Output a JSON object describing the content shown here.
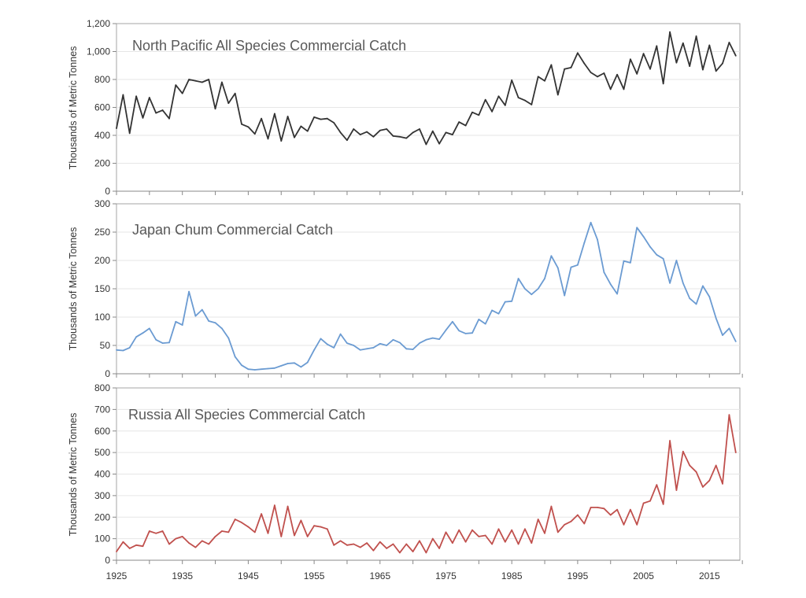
{
  "chart_data": [
    {
      "type": "line",
      "title": "North Pacific All Species Commercial Catch",
      "ylabel": "Thousands of Metric Tonnes",
      "xlabel": "",
      "color": "#333333",
      "ylim": [
        0,
        1200
      ],
      "yticks": [
        0,
        200,
        400,
        600,
        800,
        1000,
        1200
      ],
      "ytick_labels": [
        "0",
        "200",
        "400",
        "600",
        "800",
        "1,000",
        "1,200"
      ],
      "grid": true,
      "x_start": 1925,
      "values": [
        450,
        690,
        415,
        680,
        525,
        670,
        560,
        580,
        520,
        760,
        700,
        800,
        790,
        780,
        800,
        590,
        780,
        630,
        700,
        480,
        460,
        410,
        520,
        375,
        555,
        360,
        535,
        385,
        465,
        430,
        530,
        515,
        520,
        490,
        420,
        365,
        445,
        405,
        425,
        390,
        435,
        445,
        395,
        390,
        380,
        420,
        445,
        335,
        430,
        340,
        420,
        405,
        495,
        470,
        565,
        545,
        655,
        570,
        680,
        615,
        795,
        670,
        650,
        620,
        820,
        790,
        905,
        690,
        875,
        885,
        990,
        915,
        850,
        820,
        845,
        730,
        835,
        730,
        945,
        840,
        985,
        875,
        1040,
        770,
        1140,
        920,
        1060,
        895,
        1110,
        870,
        1045,
        860,
        915,
        1065,
        970
      ]
    },
    {
      "type": "line",
      "title": "Japan Chum Commercial Catch",
      "ylabel": "Thousands of Metric Tonnes",
      "xlabel": "",
      "color": "#6b9bd2",
      "ylim": [
        0,
        300
      ],
      "yticks": [
        0,
        50,
        100,
        150,
        200,
        250,
        300
      ],
      "ytick_labels": [
        "0",
        "50",
        "100",
        "150",
        "200",
        "250",
        "300"
      ],
      "grid": true,
      "x_start": 1925,
      "values": [
        42,
        41,
        46,
        65,
        72,
        80,
        60,
        54,
        55,
        92,
        86,
        145,
        102,
        113,
        93,
        90,
        80,
        63,
        30,
        15,
        8,
        7,
        8,
        9,
        10,
        14,
        18,
        19,
        12,
        20,
        42,
        62,
        52,
        46,
        70,
        54,
        50,
        42,
        44,
        46,
        53,
        50,
        60,
        55,
        44,
        43,
        54,
        60,
        63,
        61,
        77,
        92,
        76,
        71,
        72,
        96,
        88,
        112,
        106,
        127,
        128,
        168,
        150,
        140,
        150,
        168,
        208,
        187,
        138,
        188,
        192,
        231,
        267,
        237,
        179,
        158,
        141,
        199,
        196,
        258,
        242,
        224,
        210,
        203,
        160,
        200,
        160,
        133,
        123,
        155,
        136,
        98,
        68,
        80,
        57
      ]
    },
    {
      "type": "line",
      "title": "Russia All Species Commercial Catch",
      "ylabel": "Thousands of Metric Tonnes",
      "xlabel": "",
      "color": "#c0504d",
      "ylim": [
        0,
        800
      ],
      "yticks": [
        0,
        100,
        200,
        300,
        400,
        500,
        600,
        700,
        800
      ],
      "ytick_labels": [
        "0",
        "100",
        "200",
        "300",
        "400",
        "500",
        "600",
        "700",
        "800"
      ],
      "grid": true,
      "x_start": 1925,
      "xtick_labels": [
        "1925",
        "1935",
        "1945",
        "1955",
        "1965",
        "1975",
        "1985",
        "1995",
        "2005",
        "2015"
      ],
      "values": [
        40,
        85,
        55,
        70,
        65,
        135,
        125,
        135,
        75,
        100,
        110,
        80,
        60,
        90,
        75,
        110,
        135,
        130,
        190,
        175,
        155,
        130,
        215,
        125,
        255,
        110,
        250,
        115,
        185,
        110,
        160,
        155,
        145,
        70,
        90,
        70,
        75,
        60,
        80,
        45,
        85,
        55,
        75,
        35,
        75,
        40,
        90,
        35,
        100,
        55,
        130,
        80,
        140,
        85,
        140,
        110,
        115,
        75,
        145,
        85,
        140,
        75,
        145,
        80,
        190,
        125,
        250,
        130,
        165,
        180,
        210,
        170,
        245,
        245,
        240,
        210,
        235,
        165,
        235,
        165,
        265,
        275,
        350,
        260,
        555,
        325,
        505,
        440,
        410,
        340,
        370,
        440,
        355,
        675,
        500
      ]
    }
  ]
}
